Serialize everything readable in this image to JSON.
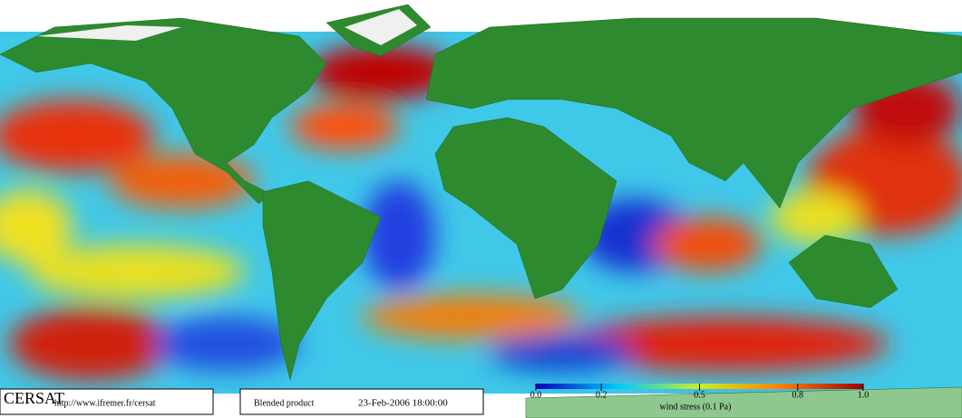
{
  "footer": {
    "logo": "CERSAT",
    "url": "http://www.ifremer.fr/cersat",
    "product": "Blended product",
    "date": "23-Feb-2006 18:00:00"
  },
  "colorbar": {
    "lim": [
      0,
      1
    ],
    "ticks": [
      {
        "value": 0,
        "label": "0.0"
      },
      0.2,
      0.5,
      0.8,
      {
        "value": 1,
        "label": "1.0"
      }
    ],
    "label": "wind stress (0.1 Pa)"
  }
}
